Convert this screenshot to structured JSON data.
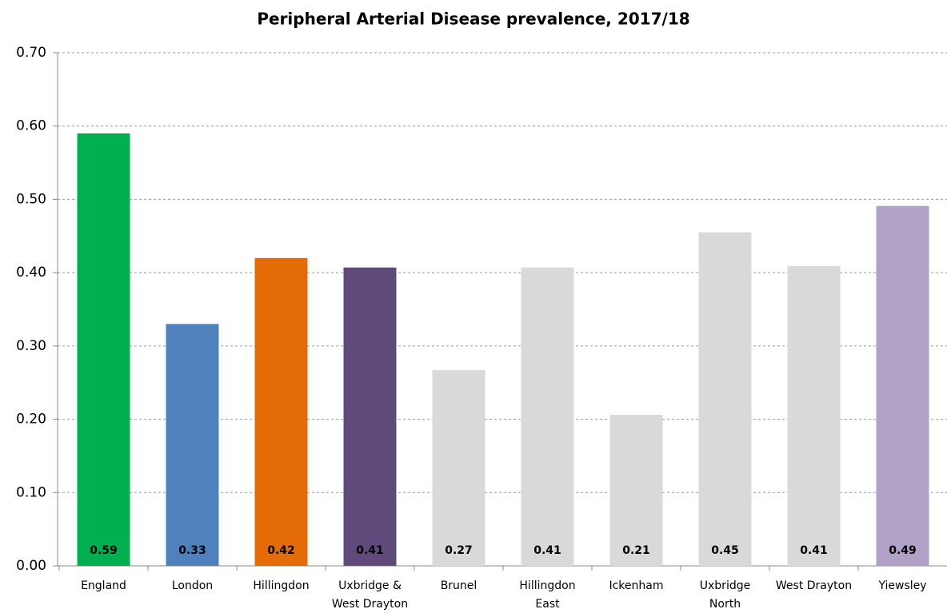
{
  "chart_data": {
    "type": "bar",
    "title": "Peripheral Arterial Disease prevalence, 2017/18",
    "categories": [
      "England",
      "London",
      "Hillingdon",
      "Uxbridge & West Drayton",
      "Brunel",
      "Hillingdon East",
      "Ickenham",
      "Uxbridge North",
      "West Drayton",
      "Yiewsley"
    ],
    "values": [
      0.59,
      0.33,
      0.42,
      0.407,
      0.267,
      0.407,
      0.206,
      0.455,
      0.409,
      0.491
    ],
    "value_labels": [
      "0.59",
      "0.33",
      "0.42",
      "0.41",
      "0.27",
      "0.41",
      "0.21",
      "0.45",
      "0.41",
      "0.49"
    ],
    "colors": [
      "#00b050",
      "#4f81bd",
      "#e36c09",
      "#604a7b",
      "#d9d9d9",
      "#d9d9d9",
      "#d9d9d9",
      "#d9d9d9",
      "#d9d9d9",
      "#b2a1c7"
    ],
    "ylim": [
      0,
      0.7
    ],
    "yticks": [
      {
        "value": 0,
        "label": "0.00"
      },
      {
        "value": 0.1,
        "label": "0.10"
      },
      {
        "value": 0.2,
        "label": "0.20"
      },
      {
        "value": 0.3,
        "label": "0.30"
      },
      {
        "value": 0.4,
        "label": "0.40"
      },
      {
        "value": 0.5,
        "label": "0.50"
      },
      {
        "value": 0.6,
        "label": "0.60"
      },
      {
        "value": 0.7,
        "label": "0.70"
      }
    ],
    "grid": true
  }
}
